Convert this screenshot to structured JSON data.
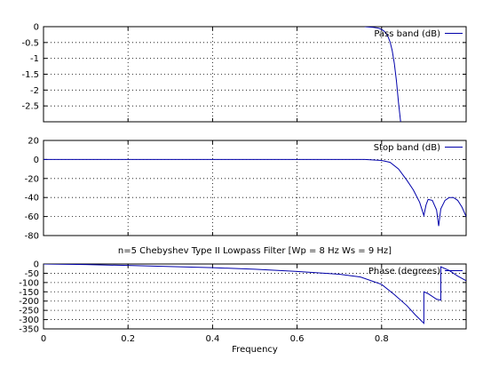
{
  "chart_data": [
    {
      "type": "line",
      "title": "",
      "xlabel": "",
      "ylabel": "",
      "xlim": [
        0,
        1
      ],
      "ylim": [
        -3,
        0
      ],
      "grid": true,
      "legend_position": "top-right",
      "x_ticks": [],
      "y_ticks": [
        0,
        -0.5,
        -1,
        -1.5,
        -2,
        -2.5
      ],
      "y_tick_labels": [
        "0",
        "-0.5",
        "-1",
        "-1.5",
        "-2",
        "-2.5"
      ],
      "series": [
        {
          "name": "Pass band (dB)",
          "color": "#0000aa",
          "x": [
            0.76,
            0.77,
            0.78,
            0.79,
            0.795,
            0.8,
            0.805,
            0.81,
            0.815,
            0.82,
            0.825,
            0.83,
            0.835,
            0.84,
            0.845
          ],
          "y": [
            0,
            -0.01,
            -0.02,
            -0.04,
            -0.06,
            -0.09,
            -0.13,
            -0.2,
            -0.31,
            -0.48,
            -0.75,
            -1.15,
            -1.7,
            -2.4,
            -3.0
          ]
        }
      ]
    },
    {
      "type": "line",
      "title": "",
      "xlabel": "",
      "ylabel": "",
      "xlim": [
        0,
        1
      ],
      "ylim": [
        -80,
        20
      ],
      "grid": true,
      "legend_position": "top-right",
      "x_ticks": [],
      "y_ticks": [
        20,
        0,
        -20,
        -40,
        -60,
        -80
      ],
      "y_tick_labels": [
        "20",
        "0",
        "-20",
        "-40",
        "-60",
        "-80"
      ],
      "series": [
        {
          "name": "Stop band (dB)",
          "color": "#0000aa",
          "x": [
            0,
            0.7,
            0.76,
            0.8,
            0.82,
            0.84,
            0.86,
            0.875,
            0.89,
            0.9,
            0.905,
            0.91,
            0.92,
            0.93,
            0.935,
            0.94,
            0.95,
            0.96,
            0.97,
            0.98,
            0.99,
            1.0
          ],
          "y": [
            0,
            0,
            0,
            -1,
            -3,
            -10,
            -22,
            -32,
            -45,
            -59,
            -48,
            -42,
            -43,
            -53,
            -70,
            -52,
            -43,
            -40,
            -40,
            -43,
            -50,
            -60
          ]
        }
      ]
    },
    {
      "type": "line",
      "title": "n=5 Chebyshev Type II Lowpass Filter [Wp = 8 Hz Ws = 9 Hz]",
      "xlabel": "Frequency",
      "ylabel": "",
      "xlim": [
        0,
        1
      ],
      "ylim": [
        -350,
        0
      ],
      "grid": true,
      "legend_position": "top-right",
      "x_ticks": [
        0,
        0.2,
        0.4,
        0.6,
        0.8
      ],
      "x_tick_labels": [
        "0",
        "0.2",
        "0.4",
        "0.6",
        "0.8"
      ],
      "y_ticks": [
        0,
        -50,
        -100,
        -150,
        -200,
        -250,
        -300,
        -350
      ],
      "y_tick_labels": [
        "0",
        "-50",
        "-100",
        "-150",
        "-200",
        "-250",
        "-300",
        "-350"
      ],
      "series": [
        {
          "name": "Phase (degrees)",
          "color": "#0000aa",
          "x": [
            0,
            0.1,
            0.2,
            0.3,
            0.4,
            0.5,
            0.6,
            0.7,
            0.75,
            0.8,
            0.83,
            0.86,
            0.88,
            0.9,
            0.9,
            0.91,
            0.93,
            0.94,
            0.94,
            0.96,
            0.98,
            1.0
          ],
          "y": [
            0,
            -3,
            -8,
            -14,
            -20,
            -28,
            -40,
            -55,
            -70,
            -110,
            -165,
            -225,
            -275,
            -320,
            -150,
            -160,
            -190,
            -195,
            -15,
            -35,
            -65,
            -90
          ]
        }
      ]
    }
  ]
}
